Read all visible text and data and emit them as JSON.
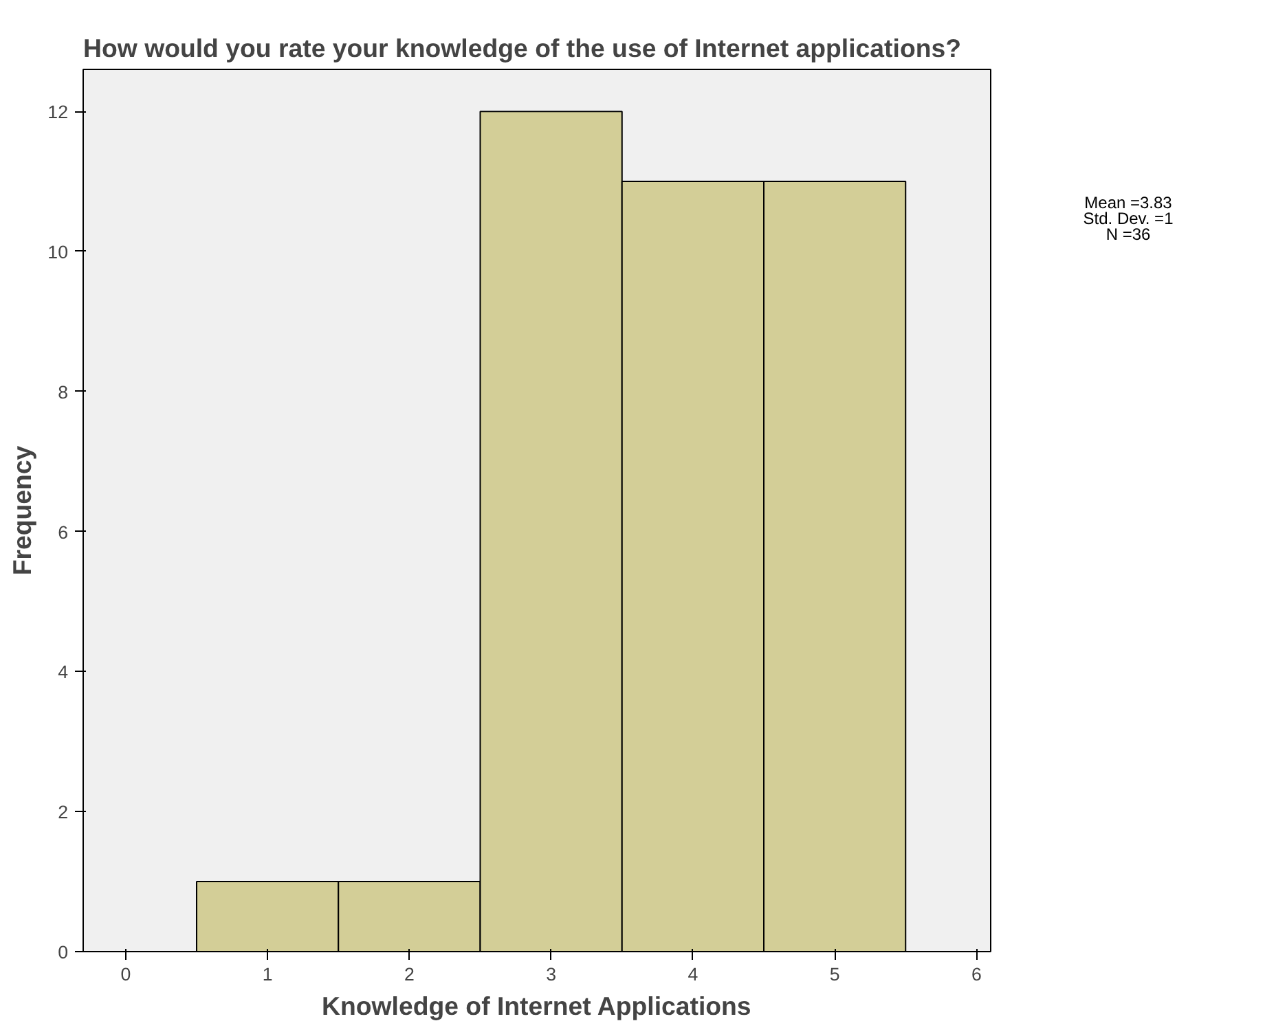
{
  "chart_data": {
    "type": "histogram",
    "title": "How would you rate your knowledge of  the use of Internet applications?",
    "xlabel": "Knowledge of Internet Applications",
    "ylabel": "Frequency",
    "bins": [
      0.5,
      1.5,
      2.5,
      3.5,
      4.5,
      5.5
    ],
    "values": [
      1,
      1,
      12,
      11,
      11
    ],
    "color": "#d3ce97",
    "xlim": [
      -0.3,
      6.1
    ],
    "xticks": [
      0,
      1,
      2,
      3,
      4,
      5,
      6
    ],
    "ylim": [
      0,
      12.6
    ],
    "yticks": [
      0,
      2,
      4,
      6,
      8,
      10,
      12
    ],
    "grid": false,
    "annotations": [
      "Mean =3.83",
      "Std. Dev. =1",
      "N =36"
    ]
  }
}
